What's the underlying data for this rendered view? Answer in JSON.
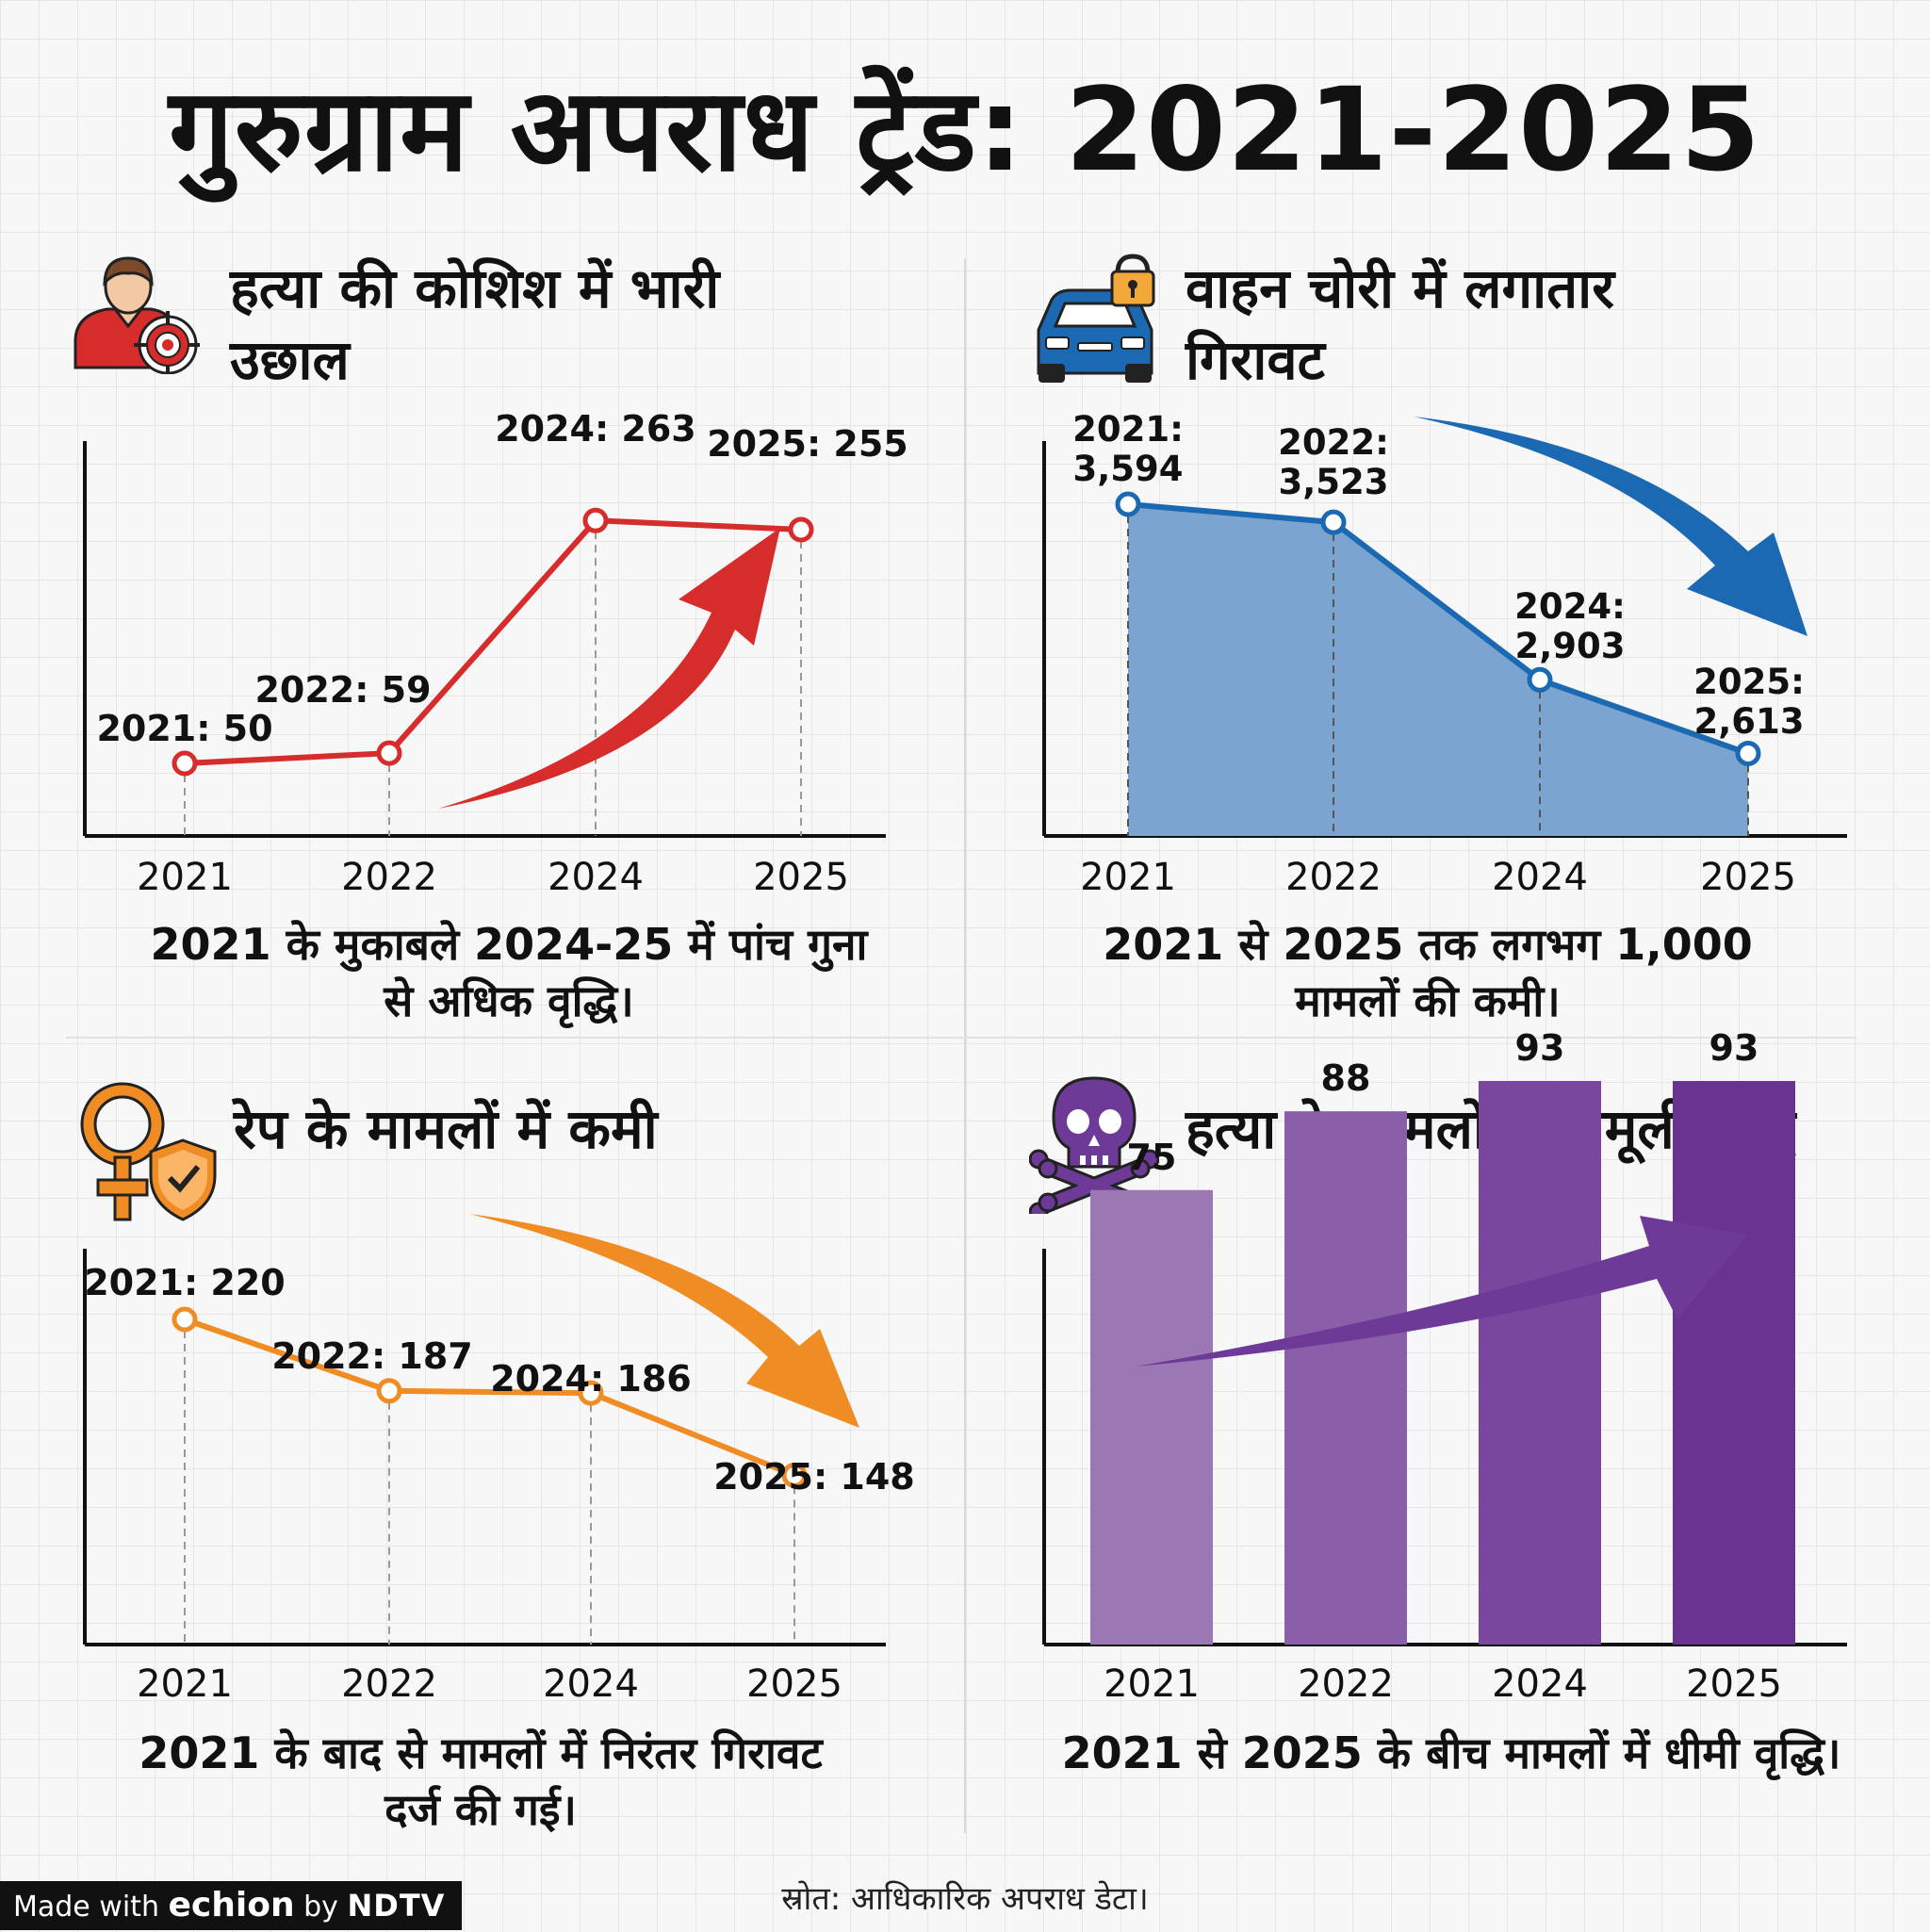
{
  "title": "गुरुग्राम अपराध ट्रेंड: 2021-2025",
  "footer": {
    "source": "स्रोत: आधिकारिक अपराध डेटा।",
    "badge_prefix": "Made with",
    "badge_brand": "echion",
    "badge_by": "by",
    "badge_ndtv": "NDTV"
  },
  "colors": {
    "red": "#d62c2c",
    "blue": "#1b68b3",
    "blue_fill": "#7ba5d0",
    "orange": "#f08c24",
    "purple": "#6d3a97"
  },
  "chart_data": [
    {
      "id": "attempt-murder",
      "type": "line",
      "icon": "person-target-icon",
      "title_line1": "हत्या की कोशिश में भारी",
      "title_line2": "उछाल",
      "categories": [
        "2021",
        "2022",
        "2024",
        "2025"
      ],
      "values": [
        50,
        59,
        263,
        255
      ],
      "labels": [
        "2021: 50",
        "2022: 59",
        "2024: 263",
        "2025: 255"
      ],
      "trend_arrow": "up",
      "caption_line1": "2021 के मुकाबले 2024-25 में पांच गुना",
      "caption_line2": "से अधिक वृद्धि।"
    },
    {
      "id": "vehicle-theft",
      "type": "area",
      "icon": "car-lock-icon",
      "title_line1": "वाहन चोरी में लगातार",
      "title_line2": "गिरावट",
      "categories": [
        "2021",
        "2022",
        "2024",
        "2025"
      ],
      "values": [
        3594,
        3523,
        2903,
        2613
      ],
      "label_years": [
        "2021:",
        "2022:",
        "2024:",
        "2025:"
      ],
      "label_values": [
        "3,594",
        "3,523",
        "2,903",
        "2,613"
      ],
      "trend_arrow": "down",
      "caption_line1": "2021 से 2025 तक लगभग 1,000",
      "caption_line2": "मामलों की कमी।"
    },
    {
      "id": "rape-cases",
      "type": "line",
      "icon": "female-shield-icon",
      "title_line1": "रेप के मामलों में कमी",
      "categories": [
        "2021",
        "2022",
        "2024",
        "2025"
      ],
      "values": [
        220,
        187,
        186,
        148
      ],
      "labels": [
        "2021: 220",
        "2022: 187",
        "2024: 186",
        "2025: 148"
      ],
      "trend_arrow": "down",
      "caption_line1": "2021 के बाद से मामलों में निरंतर गिरावट",
      "caption_line2": "दर्ज की गई।"
    },
    {
      "id": "murder-cases",
      "type": "bar",
      "icon": "skull-crossbones-icon",
      "title_line1": "हत्या के मामलों में मामूली वृद्धि",
      "categories": [
        "2021",
        "2022",
        "2024",
        "2025"
      ],
      "values": [
        75,
        88,
        93,
        93
      ],
      "labels": [
        "75",
        "88",
        "93",
        "93"
      ],
      "trend_arrow": "up",
      "caption_line1": "2021 से 2025 के बीच मामलों में धीमी वृद्धि।"
    }
  ]
}
